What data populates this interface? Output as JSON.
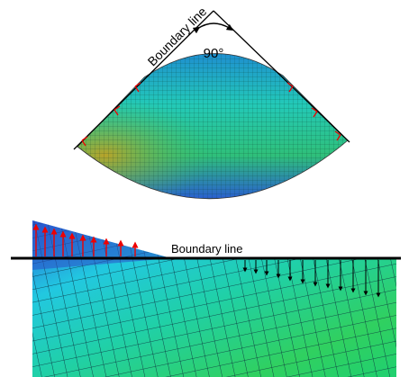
{
  "top": {
    "boundary_label": "Boundary line",
    "angle_label": "90°"
  },
  "bottom": {
    "boundary_label": "Boundary line"
  }
}
